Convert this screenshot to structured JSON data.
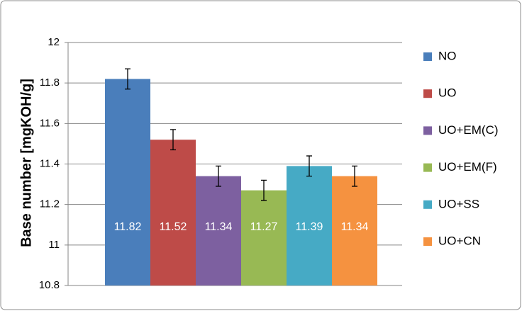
{
  "chart_data": {
    "type": "bar",
    "y_label": "Base number [mgKOH/g]",
    "categories": [
      null
    ],
    "series": [
      {
        "name": "NO",
        "color": "#4a7ebb",
        "values": [
          11.82
        ],
        "errors": [
          0.05
        ]
      },
      {
        "name": "UO",
        "color": "#be4b48",
        "values": [
          11.52
        ],
        "errors": [
          0.05
        ]
      },
      {
        "name": "UO+EM(C)",
        "color": "#7d60a0",
        "values": [
          11.34
        ],
        "errors": [
          0.05
        ]
      },
      {
        "name": "UO+EM(F)",
        "color": "#98b954",
        "values": [
          11.27
        ],
        "errors": [
          0.05
        ]
      },
      {
        "name": "UO+SS",
        "color": "#46aac5",
        "values": [
          11.39
        ],
        "errors": [
          0.05
        ]
      },
      {
        "name": "UO+CN",
        "color": "#f59240",
        "values": [
          11.34
        ],
        "errors": [
          0.05
        ]
      }
    ],
    "ylim": [
      10.8,
      12
    ],
    "yticks": [
      10.8,
      11,
      11.2,
      11.4,
      11.6,
      11.8,
      12
    ],
    "grid": true,
    "legend": "right"
  }
}
